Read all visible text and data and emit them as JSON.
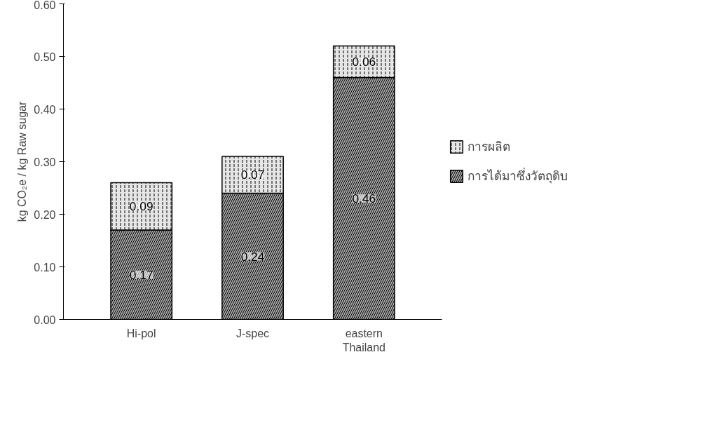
{
  "chart_data": {
    "type": "bar",
    "stacked": true,
    "ylabel": "kg CO₂e / kg Raw sugar",
    "categories": [
      "Hi-pol",
      "J-spec",
      "eastern Thailand"
    ],
    "series": [
      {
        "name": "การได้มาซึ่งวัตถุดิบ",
        "color": "#a6a6a6",
        "values": [
          0.17,
          0.24,
          0.46
        ]
      },
      {
        "name": "การผลิต",
        "color": "#e6e6e6",
        "values": [
          0.09,
          0.07,
          0.06
        ]
      }
    ],
    "ylim": [
      0,
      0.6
    ],
    "yticks": [
      {
        "value": 0,
        "label": "0.00"
      },
      {
        "value": 0.1,
        "label": "0.10"
      },
      {
        "value": 0.2,
        "label": "0.20"
      },
      {
        "value": 0.3,
        "label": "0.30"
      },
      {
        "value": 0.4,
        "label": "0.40"
      },
      {
        "value": 0.5,
        "label": "0.50"
      },
      {
        "value": 0.6,
        "label": "0.60"
      }
    ],
    "data_labels": true,
    "grid": false,
    "legend": "right"
  }
}
